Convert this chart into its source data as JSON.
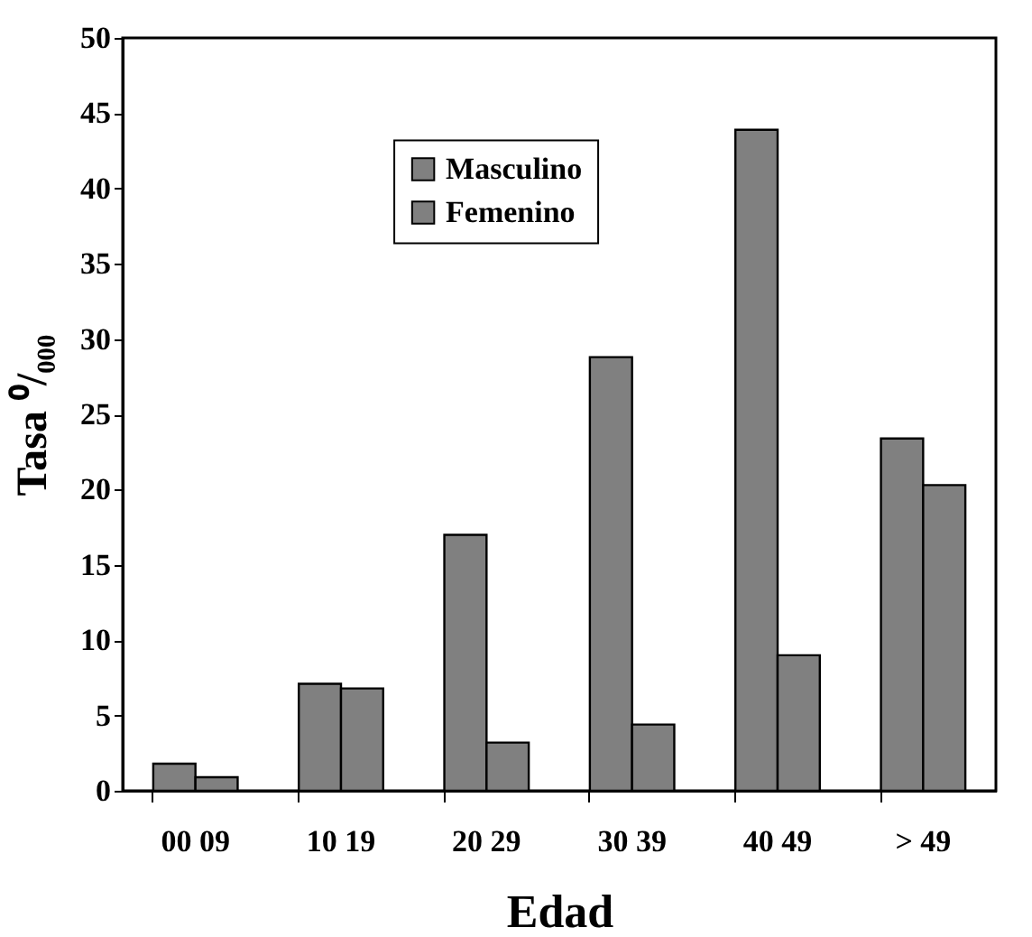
{
  "chart_data": {
    "type": "bar",
    "xlabel": "Edad",
    "ylabel": "Tasa ⁰/₀₀₀",
    "categories": [
      "00 09",
      "10 19",
      "20 29",
      "30 39",
      "40 49",
      "> 49"
    ],
    "series": [
      {
        "name": "Masculino",
        "color": "#808080",
        "values": [
          1.8,
          7.1,
          17.0,
          28.8,
          43.9,
          23.4
        ]
      },
      {
        "name": "Femenino",
        "color": "#808080",
        "values": [
          0.9,
          6.8,
          3.2,
          4.4,
          9.0,
          20.3
        ]
      }
    ],
    "ylim": [
      0,
      50
    ],
    "yticks": [
      0,
      5,
      10,
      15,
      20,
      25,
      30,
      35,
      40,
      45,
      50
    ],
    "grid": false,
    "legend": "top"
  }
}
